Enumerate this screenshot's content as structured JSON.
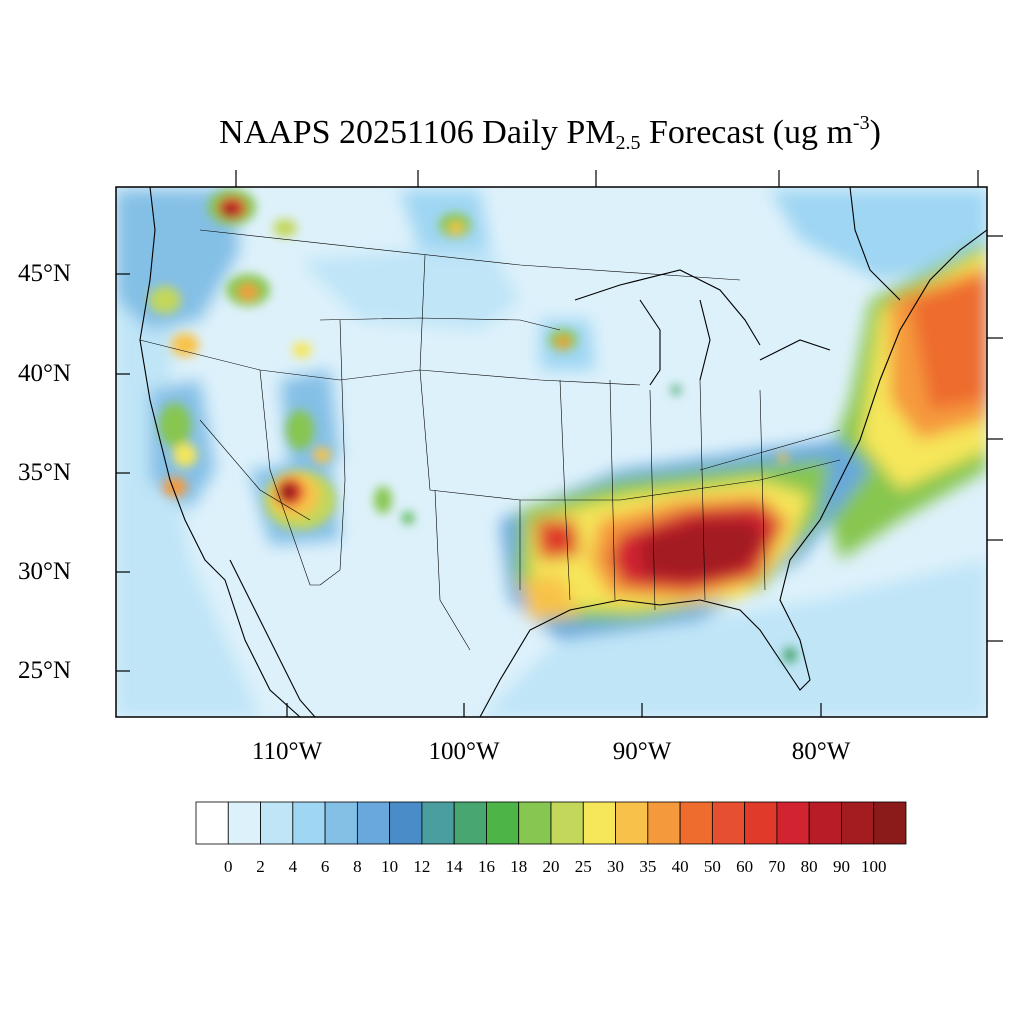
{
  "title": {
    "prefix": "NAAPS 20251106 Daily PM",
    "subscript": "2.5",
    "mid": " Forecast (ug m",
    "superscript": "-3",
    "suffix": ")"
  },
  "axes": {
    "lat_labels": [
      "45°N",
      "40°N",
      "35°N",
      "30°N",
      "25°N"
    ],
    "lat_values": [
      45,
      40,
      35,
      30,
      25
    ],
    "lon_labels": [
      "110°W",
      "100°W",
      "90°W",
      "80°W"
    ],
    "lon_values": [
      -110,
      -100,
      -90,
      -80
    ]
  },
  "colorbar": {
    "labels": [
      "0",
      "2",
      "4",
      "6",
      "8",
      "10",
      "12",
      "14",
      "16",
      "18",
      "20",
      "25",
      "30",
      "35",
      "40",
      "50",
      "60",
      "70",
      "80",
      "90",
      "100"
    ],
    "colors": [
      "#ffffff",
      "#ddf1fb",
      "#bfe5f7",
      "#9fd6f3",
      "#84bfe6",
      "#68a8dc",
      "#4a8cc8",
      "#4a9ea0",
      "#48a670",
      "#4db447",
      "#87c650",
      "#c3d75a",
      "#f6e65a",
      "#f8c24a",
      "#f59a3c",
      "#ee6c2e",
      "#e65030",
      "#df3a2a",
      "#d12430",
      "#b81c26",
      "#a21c20",
      "#8b1a1a"
    ]
  },
  "colors": {
    "background": "#ddf1fb",
    "coastal": "#bfe5f7",
    "southeast_core": "#a21c20",
    "border": "#000000"
  }
}
